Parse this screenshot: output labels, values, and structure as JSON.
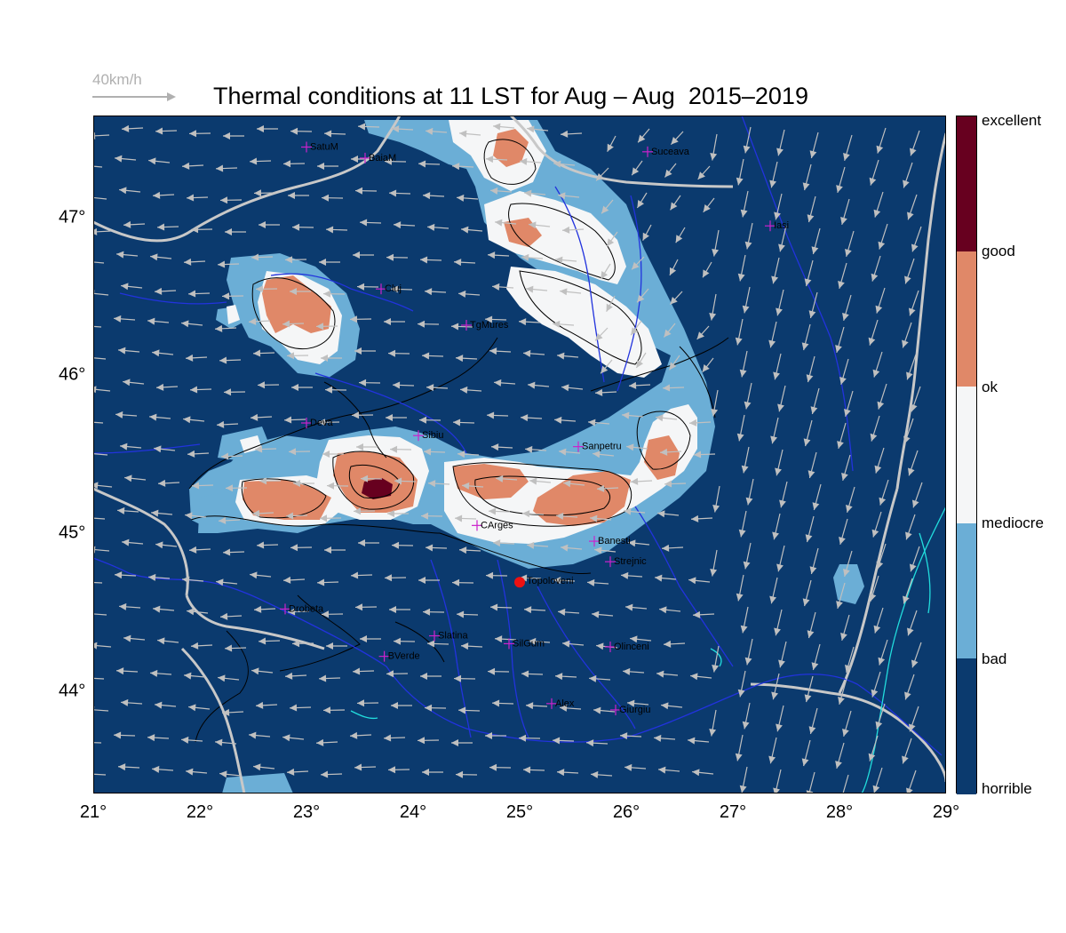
{
  "title": "Thermal conditions at 11 LST for Aug – Aug  2015–2019",
  "wind_scale": {
    "label": "40km/h",
    "color": "#b0b0b0"
  },
  "legend": {
    "classes": [
      {
        "label": "excellent",
        "color": "#67001f"
      },
      {
        "label": "good",
        "color": "#67001f"
      },
      {
        "label": "ok",
        "color": "#e08868"
      },
      {
        "label": "mediocre",
        "color": "#f5f6f7"
      },
      {
        "label": "bad",
        "color": "#6baed6"
      },
      {
        "label": "horrible",
        "color": "#0b3a6e"
      }
    ]
  },
  "axes": {
    "x_ticks": [
      "21°",
      "22°",
      "23°",
      "24°",
      "25°",
      "26°",
      "27°",
      "28°",
      "29°"
    ],
    "y_ticks": [
      "47°",
      "46°",
      "45°",
      "44°"
    ],
    "lon_range": [
      21,
      29
    ],
    "lat_range": [
      43.35,
      47.65
    ]
  },
  "colors": {
    "background": "#0b3a6e",
    "bad": "#6baed6",
    "mediocre": "#f5f6f7",
    "ok": "#e08868",
    "excellent": "#67001f",
    "rivers": "#2233dd",
    "borders": "#c8c8c8",
    "wind_arrows": "#c0c0c0",
    "city_marker": "#cc22cc",
    "highlight_point": "#ee1111"
  },
  "cities": [
    {
      "name": "SatuM",
      "lon": 23.0,
      "lat": 47.45
    },
    {
      "name": "BaiaM",
      "lon": 23.55,
      "lat": 47.38
    },
    {
      "name": "Suceava",
      "lon": 26.2,
      "lat": 47.42
    },
    {
      "name": "Iasi",
      "lon": 27.35,
      "lat": 46.95
    },
    {
      "name": "Cluj",
      "lon": 23.7,
      "lat": 46.55
    },
    {
      "name": "TgMures",
      "lon": 24.5,
      "lat": 46.32
    },
    {
      "name": "Deva",
      "lon": 23.0,
      "lat": 45.7
    },
    {
      "name": "Sibiu",
      "lon": 24.05,
      "lat": 45.62
    },
    {
      "name": "Sanpetru",
      "lon": 25.55,
      "lat": 45.55
    },
    {
      "name": "CArges",
      "lon": 24.6,
      "lat": 45.05
    },
    {
      "name": "Banesti",
      "lon": 25.7,
      "lat": 44.95
    },
    {
      "name": "Strejnic",
      "lon": 25.85,
      "lat": 44.82
    },
    {
      "name": "Drobeta",
      "lon": 22.8,
      "lat": 44.52
    },
    {
      "name": "Slatina",
      "lon": 24.2,
      "lat": 44.35
    },
    {
      "name": "SilGum",
      "lon": 24.9,
      "lat": 44.3
    },
    {
      "name": "Olinceni",
      "lon": 25.85,
      "lat": 44.28
    },
    {
      "name": "BVerde",
      "lon": 23.73,
      "lat": 44.22
    },
    {
      "name": "Alex",
      "lon": 25.3,
      "lat": 43.92
    },
    {
      "name": "Giurgiu",
      "lon": 25.9,
      "lat": 43.88
    }
  ],
  "highlight_point": {
    "name": "Topoloveni",
    "lon": 25.0,
    "lat": 44.69
  }
}
